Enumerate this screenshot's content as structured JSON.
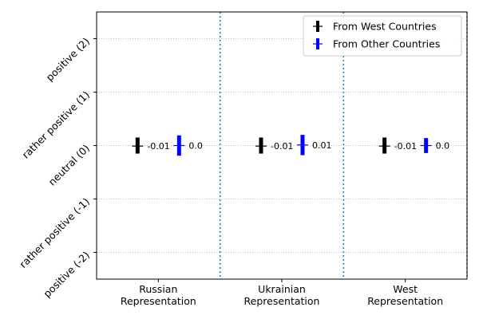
{
  "chart_data": {
    "type": "scatter",
    "title": "",
    "xlabel": "",
    "ylabel": "",
    "categories": [
      [
        "Russian",
        "Representation"
      ],
      [
        "Ukrainian",
        "Representation"
      ],
      [
        "West",
        "Representation"
      ]
    ],
    "y_ticks": [
      {
        "value": 2,
        "label": "positive (2)"
      },
      {
        "value": 1,
        "label": "rather positive (1)"
      },
      {
        "value": 0,
        "label": "neutral (0)"
      },
      {
        "value": -1,
        "label": "rather positive (-1)"
      },
      {
        "value": -2,
        "label": "positive (-2)"
      }
    ],
    "ylim": [
      -2.5,
      2.5
    ],
    "grid": "horizontal dotted",
    "category_separators": "vertical dotted",
    "legend_position": "top-right",
    "series": [
      {
        "name": "From West Countries",
        "color": "#000000",
        "values": [
          -0.01,
          -0.01,
          -0.01
        ],
        "value_labels": [
          "-0.01",
          "-0.01",
          "-0.01"
        ],
        "error_low": [
          -0.15,
          -0.15,
          -0.15
        ],
        "error_high": [
          0.15,
          0.15,
          0.15
        ]
      },
      {
        "name": "From Other Countries",
        "color": "#0000ff",
        "values": [
          0.0,
          0.01,
          0.0
        ],
        "value_labels": [
          "0.0",
          "0.01",
          "0.0"
        ],
        "error_low": [
          -0.19,
          -0.18,
          -0.14
        ],
        "error_high": [
          0.19,
          0.2,
          0.14
        ]
      }
    ],
    "separator_color": "#1f77b4",
    "grid_color": "#b0b0b0"
  }
}
